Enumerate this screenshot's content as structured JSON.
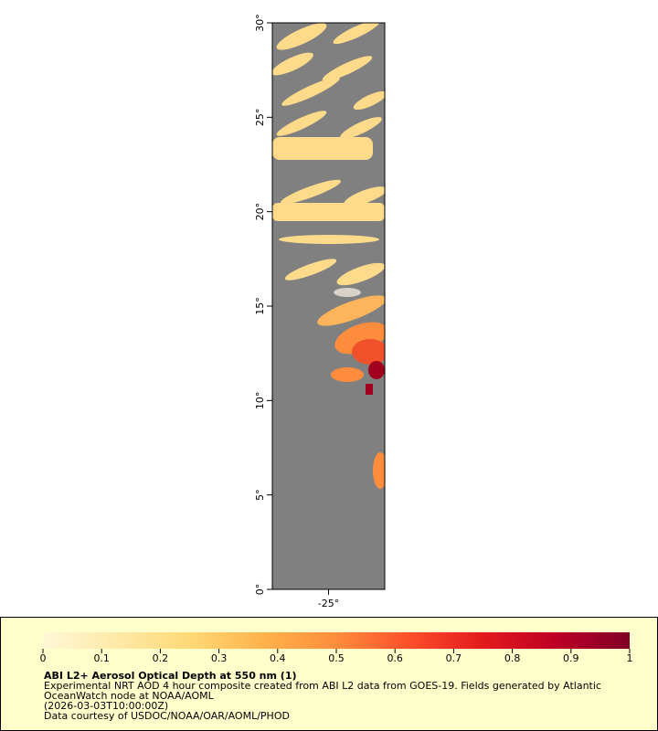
{
  "map": {
    "lat_ticks": [
      {
        "value": 0,
        "label": "0°"
      },
      {
        "value": 5,
        "label": "5°"
      },
      {
        "value": 10,
        "label": "10°"
      },
      {
        "value": 15,
        "label": "15°"
      },
      {
        "value": 20,
        "label": "20°"
      },
      {
        "value": 25,
        "label": "25°"
      },
      {
        "value": 30,
        "label": "30°"
      }
    ],
    "lat_range": [
      0,
      30
    ],
    "lon_ticks": [
      {
        "value": -25,
        "label": "-25°"
      }
    ],
    "lon_range": [
      -28,
      -22
    ],
    "colorbar": {
      "range": [
        0,
        1
      ],
      "ticks": [
        0,
        0.1,
        0.2,
        0.3,
        0.4,
        0.5,
        0.6,
        0.7,
        0.8,
        0.9,
        1
      ],
      "colors": [
        "#fff7d6",
        "#fee9a8",
        "#fed976",
        "#feb24c",
        "#fd8d3c",
        "#fc4e2a",
        "#e31a1c",
        "#bd0026",
        "#800026"
      ]
    },
    "legend": {
      "title": "ABI L2+ Aerosol Optical Depth at 550 nm (1)",
      "lines": [
        "Experimental NRT AOD 4 hour composite created from ABI L2 data from GOES-19. Fields generated by Atlantic",
        "OceanWatch node at NOAA/AOML",
        "(2026-03-03T10:00:00Z)",
        "Data courtesy of USDOC/NOAA/OAR/AOML/PHOD"
      ]
    }
  }
}
